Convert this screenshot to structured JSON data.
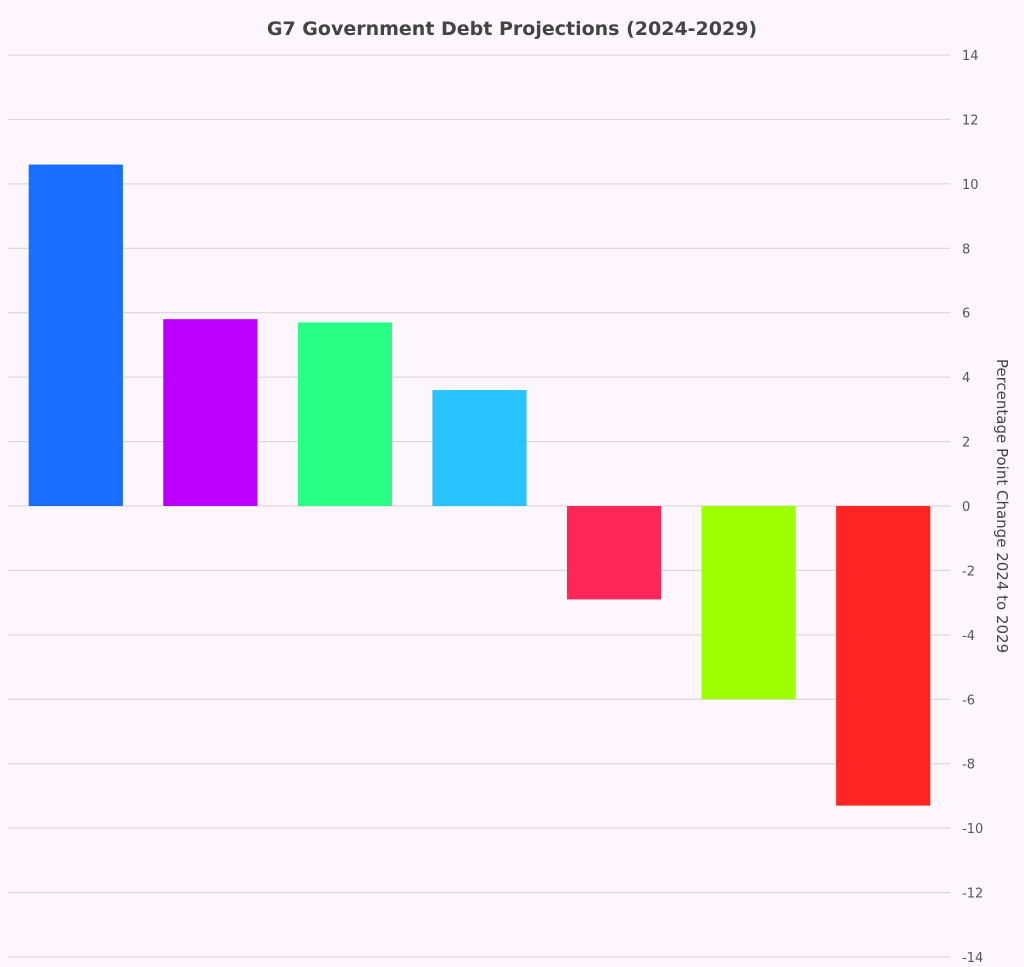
{
  "chart_data": {
    "type": "bar",
    "title": "G7 Government Debt Projections (2024-2029)",
    "xlabel": "",
    "ylabel": "Percentage Point Change 2024 to 2029",
    "ylim": [
      -14,
      14
    ],
    "yticks": [
      14,
      12,
      10,
      8,
      6,
      4,
      2,
      0,
      -2,
      -4,
      -6,
      -8,
      -10,
      -12,
      -14
    ],
    "y_axis_side": "right",
    "grid": true,
    "legend": "none",
    "values": [
      10.6,
      5.8,
      5.7,
      3.6,
      -2.9,
      -6.0,
      -9.3
    ],
    "colors": [
      "#196dff",
      "#bc00ff",
      "#2aff85",
      "#29c3ff",
      "#ff2659",
      "#9dff00",
      "#ff2323"
    ]
  }
}
